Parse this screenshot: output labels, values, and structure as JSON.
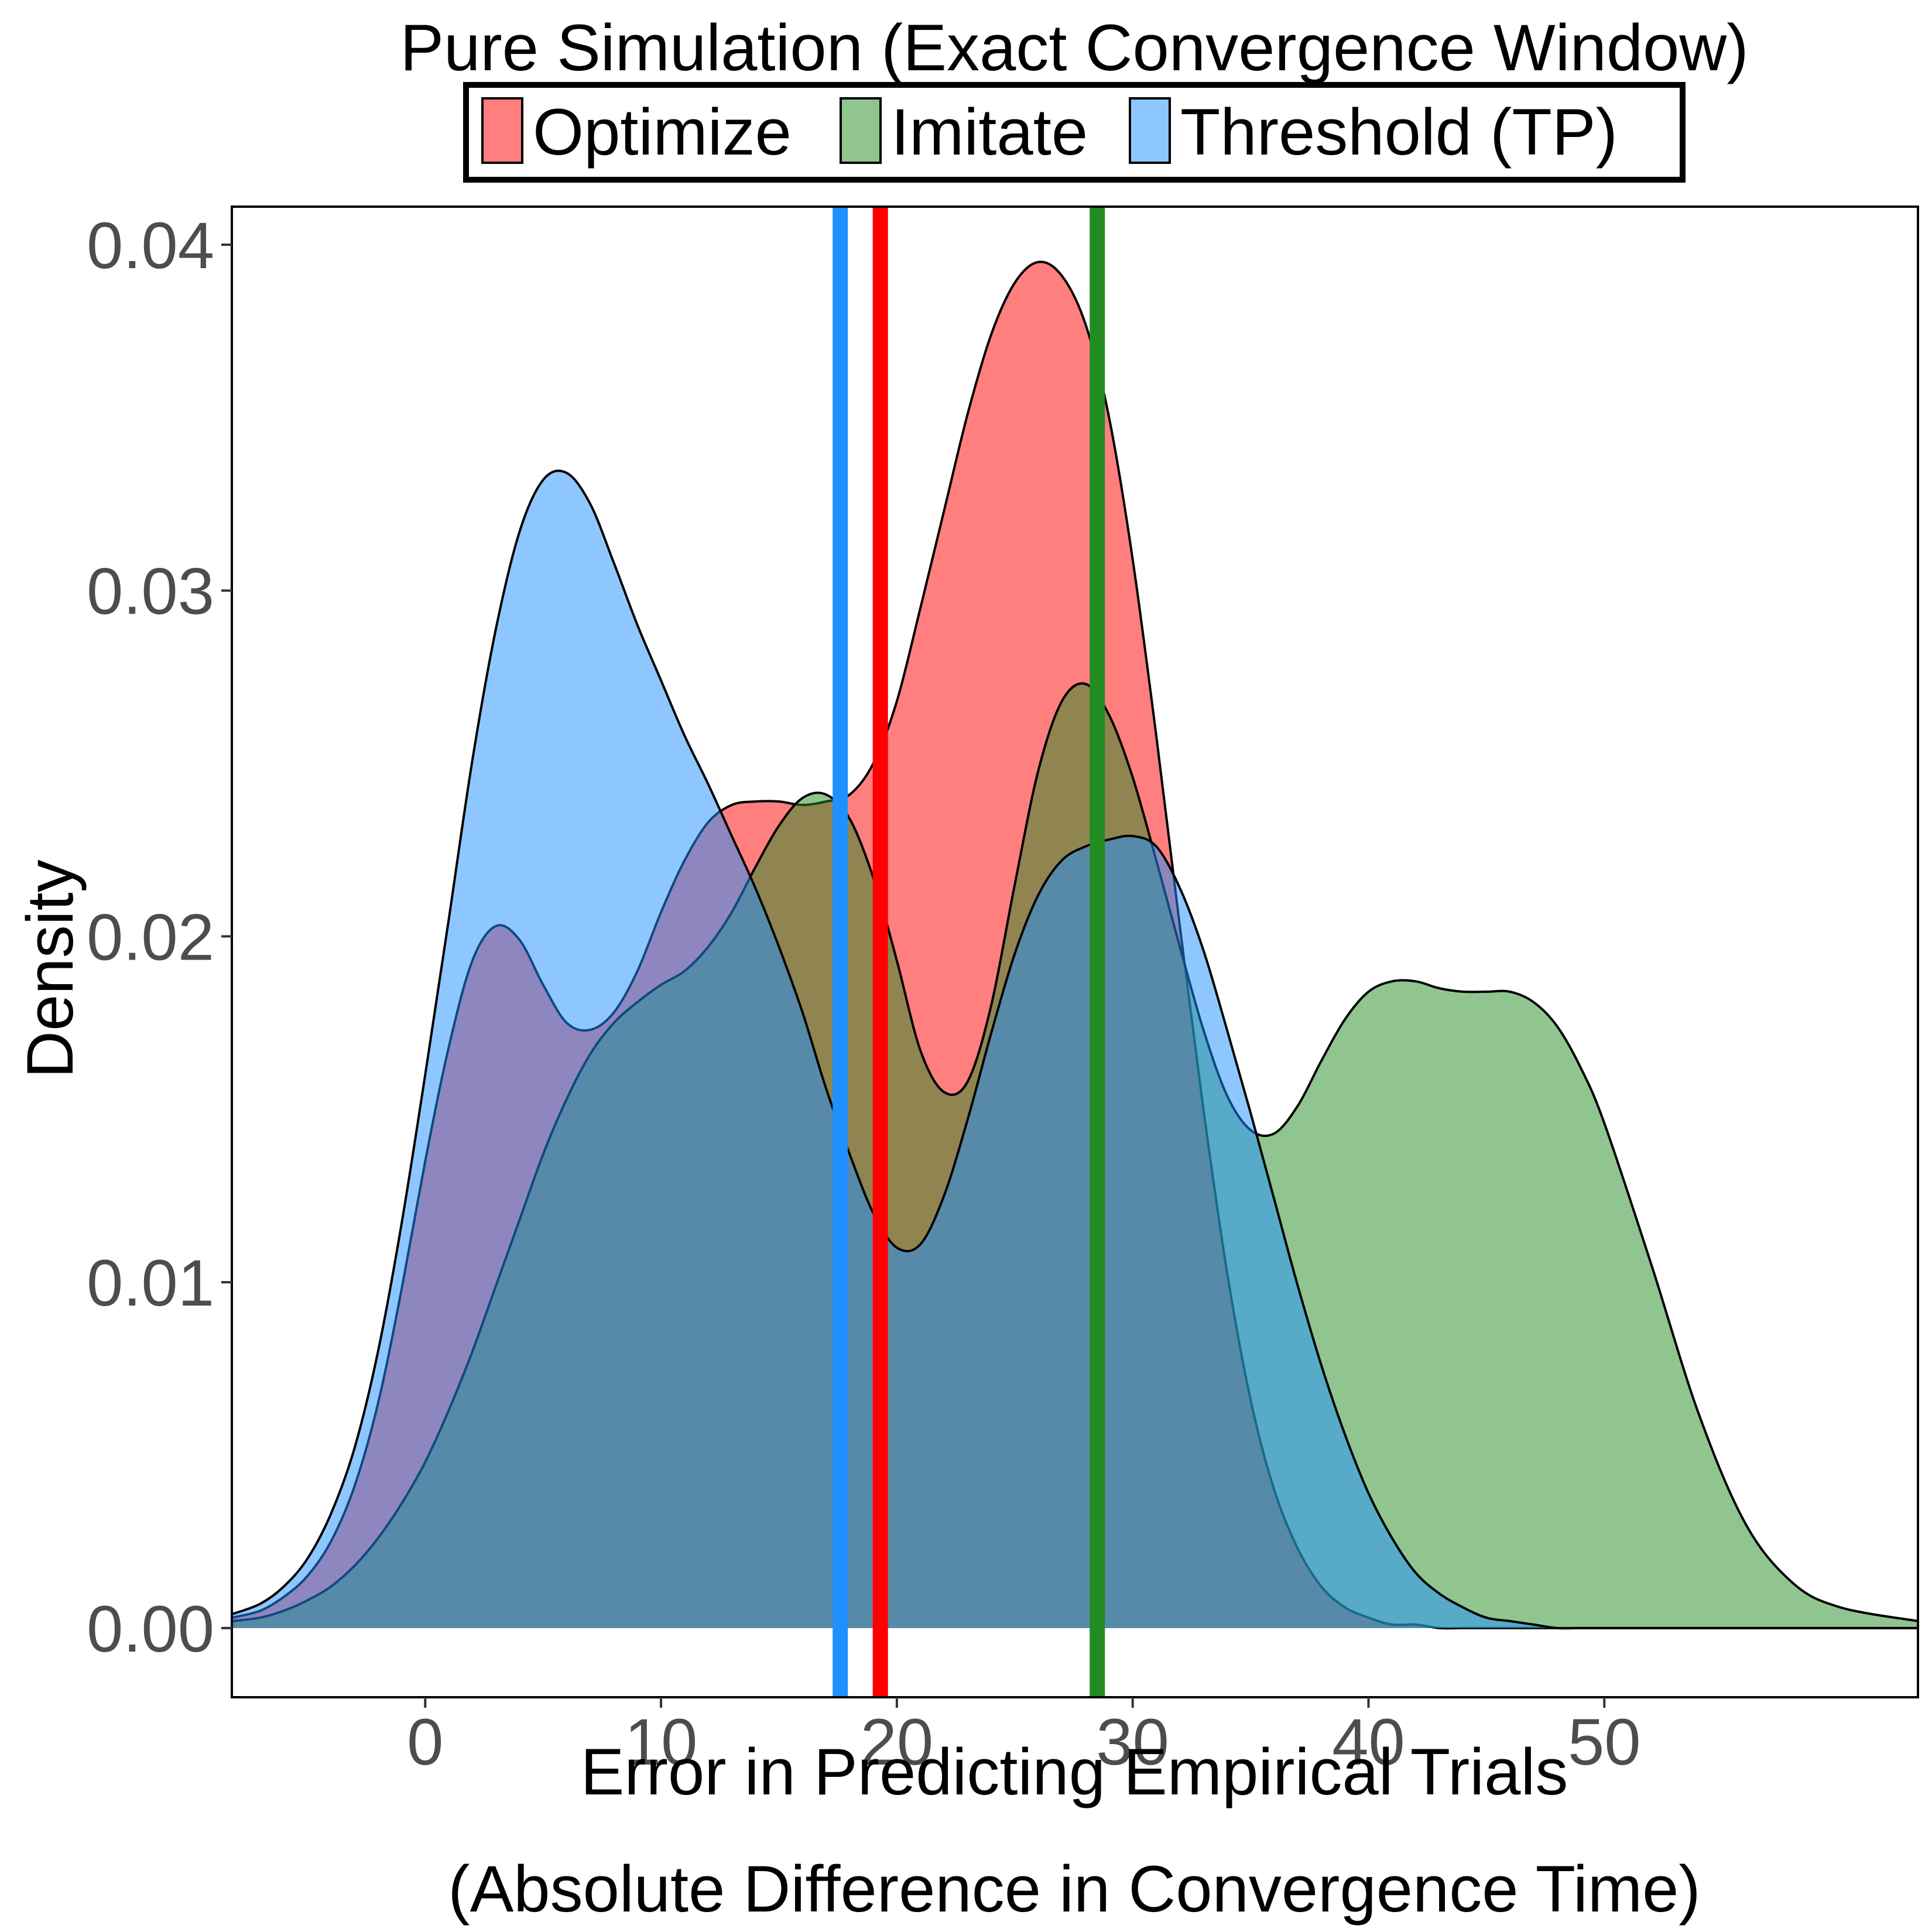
{
  "chart_data": {
    "type": "area",
    "subtype": "density",
    "title": "Pure Simulation (Exact Convergence Window)",
    "xlabel_line1": "Error in Predicting Empirical Trials",
    "xlabel_line2": "(Absolute Difference in Convergence Time)",
    "ylabel": "Density",
    "xlim": [
      -8.2,
      63.3
    ],
    "ylim": [
      -0.002,
      0.0411
    ],
    "x_ticks": [
      0,
      10,
      20,
      30,
      40,
      50
    ],
    "x_tick_labels": [
      "0",
      "10",
      "20",
      "30",
      "40",
      "50"
    ],
    "y_ticks": [
      0.0,
      0.01,
      0.02,
      0.03,
      0.04
    ],
    "y_tick_labels": [
      "0.00",
      "0.01",
      "0.02",
      "0.03",
      "0.04"
    ],
    "grid": false,
    "legend_position": "top",
    "series": [
      {
        "name": "Optimize",
        "fill": "#FF0000",
        "fill_opacity": 0.5,
        "line_color": "#FF0000",
        "mean": 19.3,
        "x": [
          -8.2,
          -7,
          -6,
          -5,
          -4,
          -3,
          -2,
          -1,
          0,
          1,
          2,
          3,
          4,
          5,
          6,
          7,
          8,
          9,
          10,
          11,
          12,
          13,
          14,
          15,
          16,
          17,
          18,
          19,
          20,
          21,
          22,
          23,
          24,
          25,
          26,
          27,
          28,
          29,
          30,
          31,
          32,
          33,
          34,
          35,
          36,
          37,
          38,
          39,
          40,
          41,
          42,
          43,
          44,
          45,
          46,
          47,
          48,
          49,
          50,
          52,
          54,
          56,
          58,
          60,
          63.3
        ],
        "y": [
          0.0003,
          0.0005,
          0.0009,
          0.0015,
          0.0025,
          0.0041,
          0.0065,
          0.0098,
          0.0135,
          0.0168,
          0.0193,
          0.0203,
          0.0199,
          0.0186,
          0.0175,
          0.0173,
          0.0178,
          0.019,
          0.0207,
          0.0222,
          0.0233,
          0.0238,
          0.0239,
          0.0239,
          0.0238,
          0.0239,
          0.0241,
          0.025,
          0.0268,
          0.0295,
          0.0323,
          0.0351,
          0.0374,
          0.0389,
          0.0395,
          0.0391,
          0.0377,
          0.035,
          0.0309,
          0.0258,
          0.0203,
          0.015,
          0.0103,
          0.0066,
          0.004,
          0.0023,
          0.0012,
          0.0006,
          0.0003,
          0.0001,
          0.0001,
          0,
          0,
          0,
          0,
          0,
          0,
          0,
          0,
          0,
          0,
          0,
          0,
          0,
          0
        ]
      },
      {
        "name": "Imitate",
        "fill": "#228B22",
        "fill_opacity": 0.5,
        "line_color": "#228B22",
        "mean": 28.5,
        "x": [
          -8.2,
          -7,
          -6,
          -5,
          -4,
          -3,
          -2,
          -1,
          0,
          1,
          2,
          3,
          4,
          5,
          6,
          7,
          8,
          9,
          10,
          11,
          12,
          13,
          14,
          15,
          16,
          17,
          18,
          19,
          20,
          21,
          22,
          23,
          24,
          25,
          26,
          27,
          28,
          29,
          30,
          31,
          32,
          33,
          34,
          35,
          36,
          37,
          38,
          39,
          40,
          41,
          42,
          43,
          44,
          45,
          46,
          47,
          48,
          49,
          50,
          52,
          54,
          56,
          58,
          60,
          63.3
        ],
        "y": [
          0.0002,
          0.0003,
          0.0005,
          0.0008,
          0.0012,
          0.0018,
          0.0026,
          0.0036,
          0.0048,
          0.0063,
          0.008,
          0.0099,
          0.0118,
          0.0137,
          0.0153,
          0.0166,
          0.0175,
          0.0181,
          0.0186,
          0.019,
          0.0197,
          0.0207,
          0.022,
          0.0232,
          0.024,
          0.0241,
          0.0234,
          0.0217,
          0.0193,
          0.0167,
          0.0155,
          0.0158,
          0.018,
          0.0215,
          0.0248,
          0.0268,
          0.0273,
          0.0264,
          0.0246,
          0.0222,
          0.0197,
          0.0173,
          0.0154,
          0.0144,
          0.0143,
          0.0151,
          0.0164,
          0.0176,
          0.0184,
          0.0187,
          0.0187,
          0.0185,
          0.0184,
          0.0184,
          0.0184,
          0.0181,
          0.0174,
          0.0162,
          0.0146,
          0.0105,
          0.0062,
          0.003,
          0.0013,
          0.0006,
          0.0002
        ]
      },
      {
        "name": "Threshold (TP)",
        "fill": "#1E90FF",
        "fill_opacity": 0.5,
        "line_color": "#1E90FF",
        "mean": 17.6,
        "x": [
          -8.2,
          -7,
          -6,
          -5,
          -4,
          -3,
          -2,
          -1,
          0,
          1,
          2,
          3,
          4,
          5,
          6,
          7,
          8,
          9,
          10,
          11,
          12,
          13,
          14,
          15,
          16,
          17,
          18,
          19,
          20,
          21,
          22,
          23,
          24,
          25,
          26,
          27,
          28,
          29,
          30,
          31,
          32,
          33,
          34,
          35,
          36,
          37,
          38,
          39,
          40,
          41,
          42,
          43,
          44,
          45,
          46,
          47,
          48,
          49,
          50,
          52,
          54,
          56,
          58,
          60,
          63.3
        ],
        "y": [
          0.0004,
          0.0007,
          0.0012,
          0.002,
          0.0033,
          0.0052,
          0.008,
          0.0117,
          0.016,
          0.0205,
          0.0251,
          0.0289,
          0.0317,
          0.0332,
          0.0334,
          0.0325,
          0.0308,
          0.029,
          0.0274,
          0.0258,
          0.0244,
          0.0229,
          0.0214,
          0.0197,
          0.0178,
          0.0156,
          0.0137,
          0.012,
          0.011,
          0.0111,
          0.0125,
          0.0147,
          0.0172,
          0.0195,
          0.0212,
          0.0222,
          0.0226,
          0.0228,
          0.0229,
          0.0226,
          0.0214,
          0.0196,
          0.0173,
          0.0149,
          0.0124,
          0.0099,
          0.0076,
          0.0056,
          0.0039,
          0.0026,
          0.0016,
          0.001,
          0.0006,
          0.0003,
          0.0002,
          0.0001,
          0,
          0,
          0,
          0,
          0,
          0,
          0,
          0,
          0
        ]
      }
    ]
  }
}
